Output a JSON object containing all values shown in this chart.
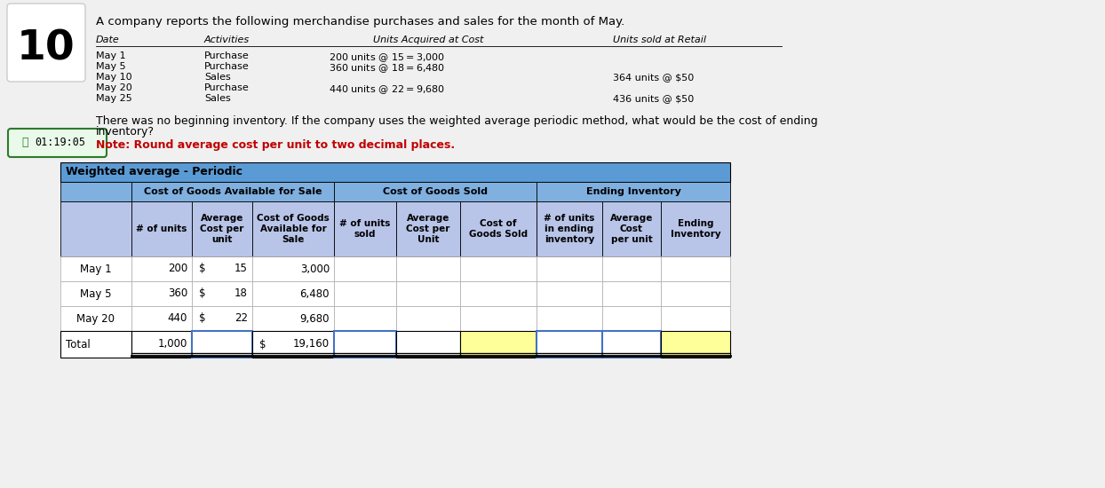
{
  "title_number": "10",
  "question_text": "A company reports the following merchandise purchases and sales for the month of May.",
  "note_line1": "There was no beginning inventory. If the company uses the weighted average periodic method, what would be the cost of ending",
  "note_line2": "inventory?",
  "note_red": "Note: Round average cost per unit to two decimal places.",
  "timer_text": "01:19:05",
  "top_table_headers": [
    "Date",
    "Activities",
    "Units Acquired at Cost",
    "Units sold at Retail"
  ],
  "top_table_rows": [
    [
      "May 1",
      "Purchase",
      "200 units @ $15 = $3,000",
      ""
    ],
    [
      "May 5",
      "Purchase",
      "360 units @ $18 = $6,480",
      ""
    ],
    [
      "May 10",
      "Sales",
      "",
      "364 units @ $50"
    ],
    [
      "May 20",
      "Purchase",
      "440 units @ $22 = $9,680",
      ""
    ],
    [
      "May 25",
      "Sales",
      "",
      "436 units @ $50"
    ]
  ],
  "table_title": "Weighted average - Periodic",
  "colors": {
    "bg": "#f0f0f0",
    "table_header_blue": "#5b9bd5",
    "table_header_light": "#7fb0e0",
    "table_subheader": "#b8c4e8",
    "table_row_white": "#ffffff",
    "yellow_cell": "#ffff99",
    "border_blue": "#4472c4",
    "text_red": "#c00000",
    "timer_green": "#2d7a2d",
    "timer_bg": "#eafaea"
  }
}
